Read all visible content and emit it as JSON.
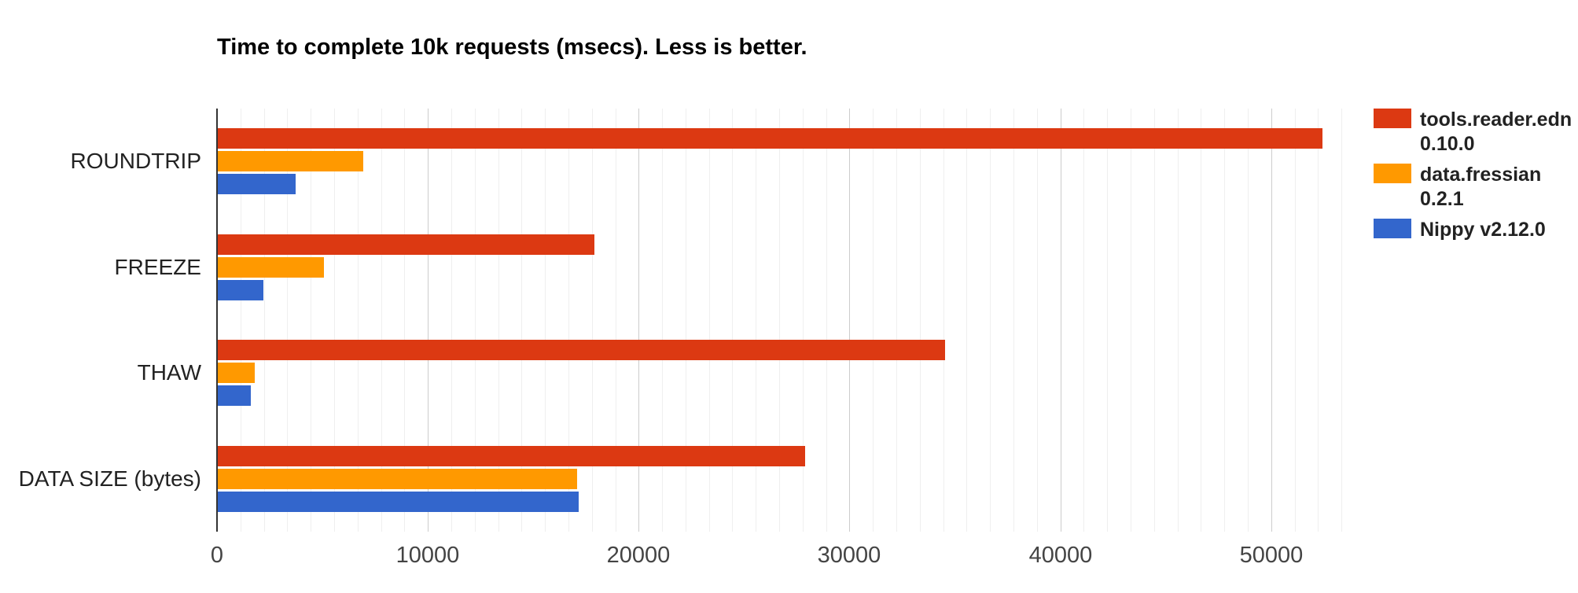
{
  "chart_data": {
    "type": "bar",
    "orientation": "horizontal",
    "title": "Time to complete 10k requests (msecs). Less is better.",
    "categories": [
      "ROUNDTRIP",
      "FREEZE",
      "THAW",
      "DATA SIZE (bytes)"
    ],
    "series": [
      {
        "name": "tools.reader.edn 0.10.0",
        "legend_lines": [
          "tools.reader.edn",
          "0.10.0"
        ],
        "color": "#dc3912",
        "values": [
          52400,
          17850,
          34500,
          27850
        ]
      },
      {
        "name": "data.fressian 0.2.1",
        "legend_lines": [
          "data.fressian",
          "0.2.1"
        ],
        "color": "#ff9900",
        "values": [
          6900,
          5050,
          1750,
          17050
        ]
      },
      {
        "name": "Nippy v2.12.0",
        "legend_lines": [
          "Nippy v2.12.0"
        ],
        "color": "#3366cc",
        "values": [
          3700,
          2150,
          1550,
          17100
        ]
      }
    ],
    "x_axis": {
      "ticks": [
        0,
        10000,
        20000,
        30000,
        40000,
        50000
      ],
      "tick_labels": [
        "0",
        "10000",
        "20000",
        "30000",
        "40000",
        "50000"
      ],
      "max": 53700,
      "major_interval": 10000,
      "minor_gridlines_per_major": 9
    },
    "legend_position": "right",
    "grid": true,
    "colors": {
      "background": "#ffffff",
      "axis_line": "#333333",
      "major_grid": "#cccccc",
      "minor_grid": "#efefef",
      "title_text": "#000000",
      "category_text": "#222222",
      "tick_text": "#444444",
      "legend_text": "#222222"
    }
  }
}
